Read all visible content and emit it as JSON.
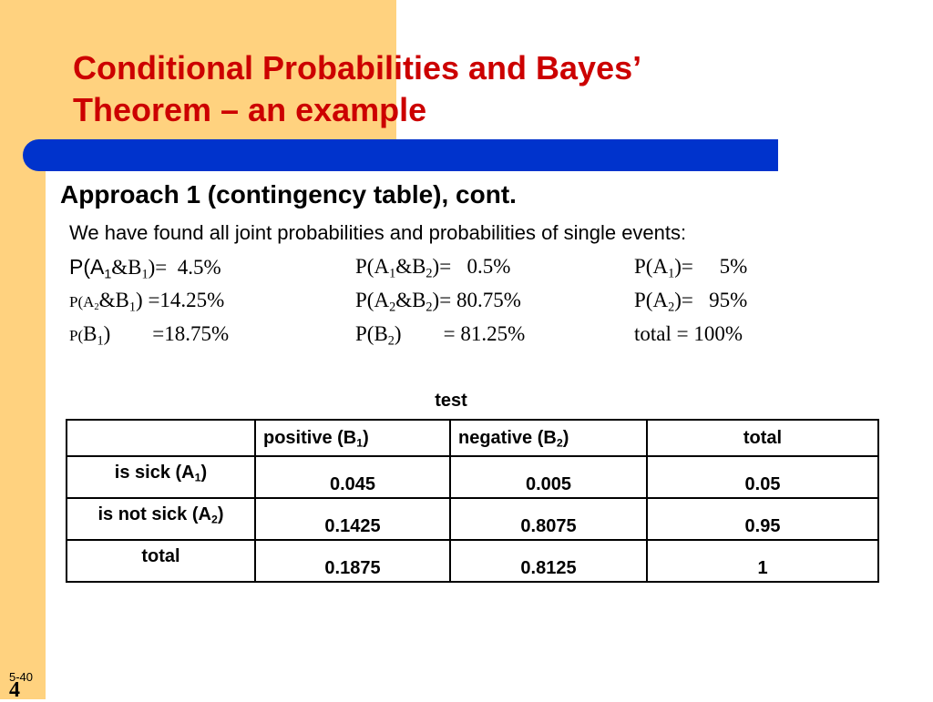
{
  "colors": {
    "accent_orange": "#ffd27f",
    "title_red": "#cc0000",
    "bar_blue": "#0033cc"
  },
  "title_line1": "Conditional Probabilities and Bayes’",
  "title_line2": "Theorem – an example",
  "subtitle": "Approach 1 (contingency table), cont.",
  "intro": "We have found all joint probabilities and probabilities of single events:",
  "probs": {
    "r1": {
      "c1": "4.5%",
      "c2": "0.5%",
      "c3": "5%"
    },
    "r2": {
      "c1": "=14.25%",
      "c2": "= 80.75%",
      "c3": "95%"
    },
    "r3": {
      "c1": "=18.75%",
      "c2": "= 81.25%",
      "c3": "total  = 100%"
    }
  },
  "table": {
    "caption": "test",
    "headers": {
      "positive": "positive (B",
      "negative": "negative (B",
      "total": "total"
    },
    "rows": [
      {
        "label": "is sick (A",
        "values": [
          "0.045",
          "0.005",
          "0.05"
        ]
      },
      {
        "label": "is not sick (A",
        "values": [
          "0.1425",
          "0.8075",
          "0.95"
        ]
      },
      {
        "label": "total",
        "values": [
          "0.1875",
          "0.8125",
          "1"
        ]
      }
    ]
  },
  "slide_number_small": "5-40",
  "slide_number_big": "4"
}
